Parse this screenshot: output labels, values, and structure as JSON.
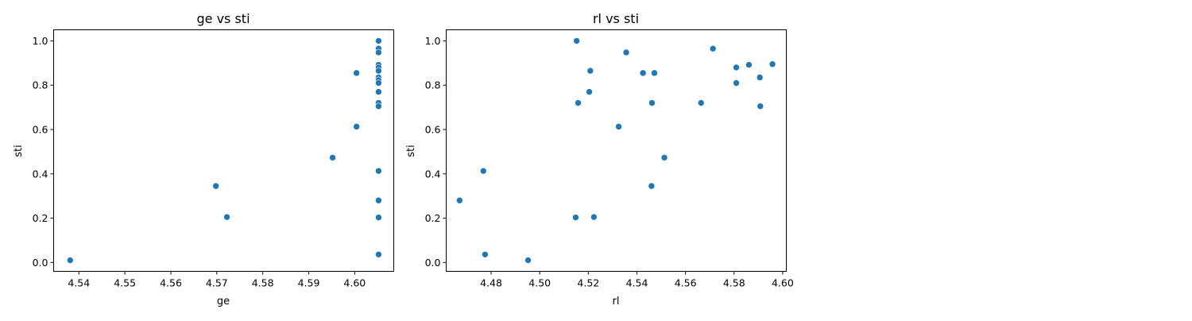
{
  "chart_data": [
    {
      "type": "scatter",
      "title": "ge vs sti",
      "xlabel": "ge",
      "ylabel": "sti",
      "xlim": [
        4.5345,
        4.6085
      ],
      "ylim": [
        -0.04,
        1.05
      ],
      "xticks": [
        4.54,
        4.55,
        4.56,
        4.57,
        4.58,
        4.59,
        4.6
      ],
      "xtick_labels": [
        "4.54",
        "4.55",
        "4.56",
        "4.57",
        "4.58",
        "4.59",
        "4.60"
      ],
      "yticks": [
        0.0,
        0.2,
        0.4,
        0.6,
        0.8,
        1.0
      ],
      "ytick_labels": [
        "0.0",
        "0.2",
        "0.4",
        "0.6",
        "0.8",
        "1.0"
      ],
      "grid": false,
      "color": "#1f77b4",
      "points": [
        {
          "x": 4.5381,
          "y": 0.01
        },
        {
          "x": 4.5698,
          "y": 0.345
        },
        {
          "x": 4.5722,
          "y": 0.205
        },
        {
          "x": 4.5952,
          "y": 0.473
        },
        {
          "x": 4.6004,
          "y": 0.855
        },
        {
          "x": 4.6004,
          "y": 0.613
        },
        {
          "x": 4.6052,
          "y": 1.0
        },
        {
          "x": 4.6052,
          "y": 0.965
        },
        {
          "x": 4.6052,
          "y": 0.948
        },
        {
          "x": 4.6052,
          "y": 0.892
        },
        {
          "x": 4.6052,
          "y": 0.88
        },
        {
          "x": 4.6052,
          "y": 0.865
        },
        {
          "x": 4.6052,
          "y": 0.835
        },
        {
          "x": 4.6052,
          "y": 0.823
        },
        {
          "x": 4.6052,
          "y": 0.81
        },
        {
          "x": 4.6052,
          "y": 0.77
        },
        {
          "x": 4.6052,
          "y": 0.72
        },
        {
          "x": 4.6052,
          "y": 0.705
        },
        {
          "x": 4.6052,
          "y": 0.413
        },
        {
          "x": 4.6052,
          "y": 0.28
        },
        {
          "x": 4.6052,
          "y": 0.203
        },
        {
          "x": 4.6052,
          "y": 0.036
        }
      ]
    },
    {
      "type": "scatter",
      "title": "rl vs sti",
      "xlabel": "rl",
      "ylabel": "sti",
      "xlim": [
        4.4615,
        4.6015
      ],
      "ylim": [
        -0.04,
        1.05
      ],
      "xticks": [
        4.48,
        4.5,
        4.52,
        4.54,
        4.56,
        4.58,
        4.6
      ],
      "xtick_labels": [
        "4.48",
        "4.50",
        "4.52",
        "4.54",
        "4.56",
        "4.58",
        "4.60"
      ],
      "yticks": [
        0.0,
        0.2,
        0.4,
        0.6,
        0.8,
        1.0
      ],
      "ytick_labels": [
        "0.0",
        "0.2",
        "0.4",
        "0.6",
        "0.8",
        "1.0"
      ],
      "grid": false,
      "color": "#1f77b4",
      "points": [
        {
          "x": 4.467,
          "y": 0.28
        },
        {
          "x": 4.4768,
          "y": 0.413
        },
        {
          "x": 4.4775,
          "y": 0.036
        },
        {
          "x": 4.4952,
          "y": 0.01
        },
        {
          "x": 4.5148,
          "y": 0.203
        },
        {
          "x": 4.5152,
          "y": 1.0
        },
        {
          "x": 4.5158,
          "y": 0.72
        },
        {
          "x": 4.5204,
          "y": 0.77
        },
        {
          "x": 4.5208,
          "y": 0.865
        },
        {
          "x": 4.5223,
          "y": 0.205
        },
        {
          "x": 4.5325,
          "y": 0.613
        },
        {
          "x": 4.5356,
          "y": 0.948
        },
        {
          "x": 4.5425,
          "y": 0.855
        },
        {
          "x": 4.546,
          "y": 0.345
        },
        {
          "x": 4.5462,
          "y": 0.72
        },
        {
          "x": 4.5472,
          "y": 0.855
        },
        {
          "x": 4.5513,
          "y": 0.473
        },
        {
          "x": 4.5664,
          "y": 0.72
        },
        {
          "x": 4.5713,
          "y": 0.965
        },
        {
          "x": 4.5809,
          "y": 0.88
        },
        {
          "x": 4.5809,
          "y": 0.81
        },
        {
          "x": 4.5861,
          "y": 0.892
        },
        {
          "x": 4.5906,
          "y": 0.835
        },
        {
          "x": 4.5908,
          "y": 0.705
        },
        {
          "x": 4.5958,
          "y": 0.895
        }
      ]
    }
  ]
}
